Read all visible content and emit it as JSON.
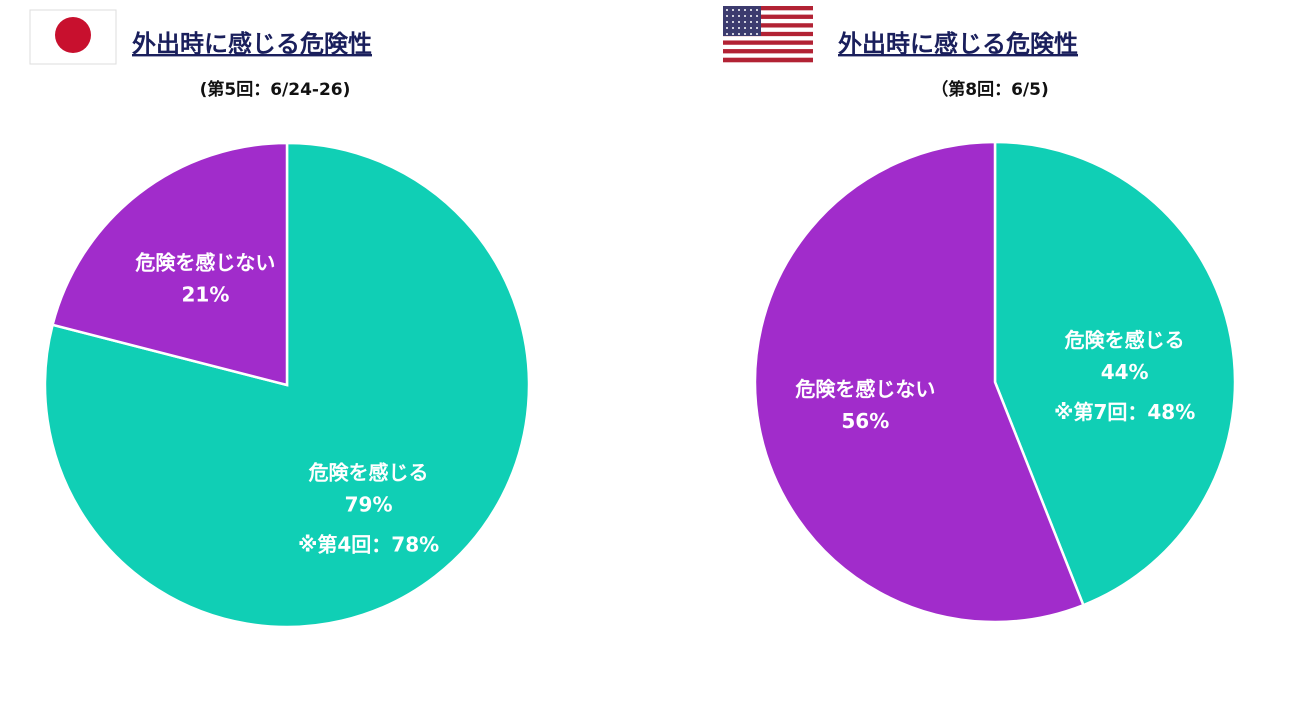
{
  "chart_data": [
    {
      "type": "pie",
      "title": "外出時に感じる危険性",
      "subtitle": "(第5回：6/24-26)",
      "categories": [
        "危険を感じる",
        "危険を感じない"
      ],
      "values": [
        79,
        21
      ],
      "value_labels": [
        "79%",
        "21%"
      ],
      "colors": [
        "#10cfb5",
        "#a12ccb"
      ],
      "annotation": "※第4回：78%"
    },
    {
      "type": "pie",
      "title": "外出時に感じる危険性",
      "subtitle": "（第8回：6/5)",
      "categories": [
        "危険を感じる",
        "危険を感じない"
      ],
      "values": [
        44,
        56
      ],
      "value_labels": [
        "44%",
        "56%"
      ],
      "colors": [
        "#10cfb5",
        "#a12ccb"
      ],
      "annotation": "※第7回：48%"
    }
  ]
}
